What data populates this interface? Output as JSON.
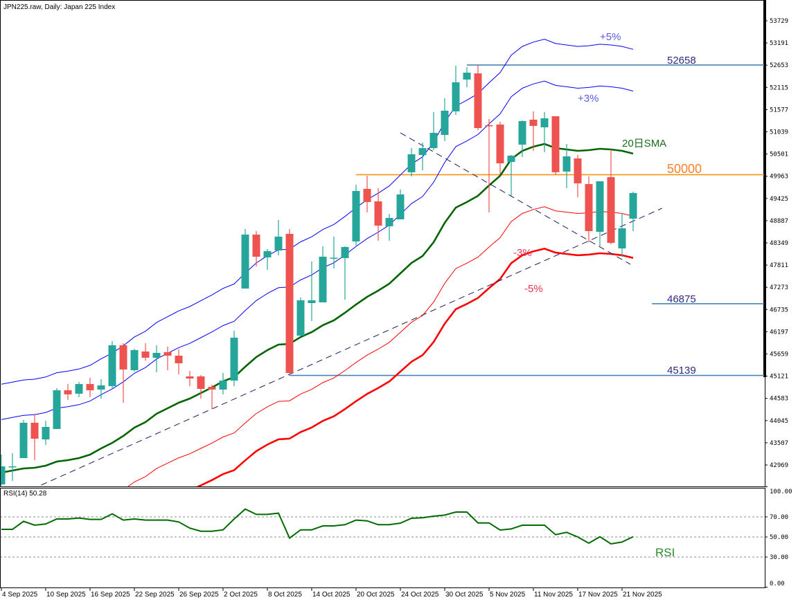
{
  "header": {
    "title": "JPN225.raw, Daily:  Japan 225 Index"
  },
  "rsi_panel": {
    "title": "RSI(14) 50.28",
    "label": "RSI"
  },
  "annotations": {
    "plus5": "+5%",
    "plus3": "+3%",
    "sma": "20日SMA",
    "minus3": "-3%",
    "minus5": "-5%"
  },
  "colors": {
    "bull": "#26a69a",
    "bear": "#ef5350",
    "sma": "#006400",
    "upper_env": "#0000ff",
    "lower_env": "#ff0000",
    "level_line": "#4682b4",
    "round_level": "#ff8c00",
    "trendline": "#1a1a60",
    "rsi": "#006a00"
  },
  "chart_data": [
    {
      "type": "candlestick",
      "title": "JPN225.raw, Daily:  Japan 225 Index",
      "ylim": [
        42700,
        54300
      ],
      "y_ticks": [
        "53729",
        "53191",
        "52653",
        "52115",
        "51577",
        "51039",
        "50501",
        "49963",
        "49425",
        "48887",
        "48349",
        "47811",
        "47273",
        "46735",
        "46197",
        "45659",
        "45121",
        "44583",
        "44045",
        "43507",
        "42969"
      ],
      "x_tick_labels": [
        {
          "index": 0,
          "label": "4 Sep 2025"
        },
        {
          "index": 4,
          "label": "10 Sep 2025"
        },
        {
          "index": 8,
          "label": "16 Sep 2025"
        },
        {
          "index": 12,
          "label": "22 Sep 2025"
        },
        {
          "index": 16,
          "label": "26 Sep 2025"
        },
        {
          "index": 20,
          "label": "2 Oct 2025"
        },
        {
          "index": 24,
          "label": "8 Oct 2025"
        },
        {
          "index": 28,
          "label": "14 Oct 2025"
        },
        {
          "index": 32,
          "label": "20 Oct 2025"
        },
        {
          "index": 36,
          "label": "24 Oct 2025"
        },
        {
          "index": 40,
          "label": "30 Oct 2025"
        },
        {
          "index": 44,
          "label": "5 Nov 2025"
        },
        {
          "index": 48,
          "label": "11 Nov 2025"
        },
        {
          "index": 52,
          "label": "17 Nov 2025"
        },
        {
          "index": 56,
          "label": "21 Nov 2025"
        }
      ],
      "ohlc_fields": [
        "open",
        "high",
        "low",
        "close"
      ],
      "ohlc": [
        [
          42500,
          43221,
          42466,
          42936
        ],
        [
          42920,
          43254,
          42584,
          42936
        ],
        [
          43137,
          44059,
          43137,
          43992
        ],
        [
          43992,
          44210,
          43087,
          43606
        ],
        [
          43589,
          44042,
          43455,
          43891
        ],
        [
          43841,
          44830,
          43841,
          44779
        ],
        [
          44779,
          44930,
          44545,
          44679
        ],
        [
          44696,
          44980,
          44612,
          44930
        ],
        [
          44930,
          45081,
          44612,
          44779
        ],
        [
          44796,
          45048,
          44578,
          44897
        ],
        [
          44880,
          45969,
          44813,
          45869
        ],
        [
          45869,
          45919,
          44478,
          45282
        ],
        [
          45265,
          45785,
          45232,
          45751
        ],
        [
          45718,
          45919,
          45500,
          45567
        ],
        [
          45567,
          45869,
          45215,
          45684
        ],
        [
          45701,
          45835,
          45265,
          45617
        ],
        [
          45617,
          45768,
          45165,
          45433
        ],
        [
          45115,
          45249,
          44880,
          45064
        ],
        [
          45115,
          45148,
          44578,
          44813
        ],
        [
          44863,
          44913,
          44327,
          44796
        ],
        [
          44796,
          45198,
          44679,
          45014
        ],
        [
          45014,
          46221,
          44880,
          46053
        ],
        [
          47243,
          48684,
          47243,
          48550
        ],
        [
          48550,
          48634,
          47779,
          48014
        ],
        [
          47997,
          48198,
          47696,
          48148
        ],
        [
          48165,
          48902,
          48048,
          48500
        ],
        [
          48567,
          48684,
          45139,
          45198
        ],
        [
          46103,
          47025,
          46103,
          46958
        ],
        [
          46891,
          47897,
          46455,
          46958
        ],
        [
          46908,
          48265,
          46908,
          48014
        ],
        [
          47981,
          48500,
          47729,
          47990
        ],
        [
          47981,
          48265,
          46975,
          48249
        ],
        [
          48383,
          49757,
          48282,
          49606
        ],
        [
          49657,
          49975,
          49087,
          49338
        ],
        [
          49355,
          49673,
          48400,
          48768
        ],
        [
          48751,
          49053,
          48400,
          48953
        ],
        [
          48919,
          49640,
          48919,
          49522
        ],
        [
          50059,
          50645,
          49958,
          50495
        ],
        [
          50478,
          50779,
          50109,
          50645
        ],
        [
          50645,
          51517,
          50595,
          51014
        ],
        [
          50964,
          51852,
          50813,
          51550
        ],
        [
          51534,
          52640,
          51450,
          52238
        ],
        [
          52305,
          52606,
          52120,
          52472
        ],
        [
          52455,
          52658,
          51081,
          51131
        ],
        [
          51198,
          51349,
          49087,
          51182
        ],
        [
          51215,
          51282,
          50008,
          50277
        ],
        [
          50310,
          50478,
          49489,
          50461
        ],
        [
          50729,
          51316,
          50427,
          51299
        ],
        [
          51333,
          51534,
          50578,
          51182
        ],
        [
          51148,
          51517,
          50545,
          51366
        ],
        [
          51416,
          51416,
          49992,
          50059
        ],
        [
          50076,
          50746,
          49673,
          50444
        ],
        [
          50394,
          50478,
          49455,
          49791
        ],
        [
          49774,
          49958,
          48366,
          48634
        ],
        [
          48617,
          49841,
          48249,
          49841
        ],
        [
          49941,
          50612,
          48316,
          48349
        ],
        [
          48215,
          49070,
          48014,
          48701
        ],
        [
          48936,
          49589,
          48634,
          49556
        ]
      ],
      "sma20": [
        42785,
        42835,
        42885,
        42902,
        42953,
        43053,
        43087,
        43137,
        43221,
        43372,
        43506,
        43673,
        43874,
        44008,
        44210,
        44344,
        44478,
        44578,
        44712,
        44846,
        44997,
        45098,
        45349,
        45584,
        45751,
        45886,
        45902,
        46070,
        46187,
        46355,
        46472,
        46656,
        46858,
        47042,
        47193,
        47360,
        47612,
        47863,
        48031,
        48366,
        48835,
        49204,
        49338,
        49489,
        49740,
        49975,
        50377,
        50578,
        50679,
        50746,
        50645,
        50612,
        50578,
        50595,
        50629,
        50612,
        50578,
        50511
      ],
      "envelopes_pct": [
        5,
        3,
        -3,
        -5
      ],
      "levels": [
        {
          "value": 52658,
          "label": "52658",
          "from_index": 42,
          "kind": "level"
        },
        {
          "value": 50000,
          "label": "50000",
          "from_index": 32,
          "kind": "round"
        },
        {
          "value": 46875,
          "label": "46875",
          "from_index": 58.7,
          "kind": "level"
        },
        {
          "value": 45139,
          "label": "45139",
          "from_index": 26,
          "kind": "level"
        }
      ],
      "trendlines": [
        {
          "from": [
            3.6,
            42483
          ],
          "to": [
            59.6,
            49187
          ]
        },
        {
          "from": [
            36,
            51014
          ],
          "to": [
            56.75,
            47830
          ]
        }
      ]
    },
    {
      "type": "line",
      "title": "RSI(14) 50.28",
      "ylim": [
        0,
        100
      ],
      "y_ticks": [
        "100.00",
        "70.00",
        "50.00",
        "30.00",
        "0.00"
      ],
      "levels": [
        70,
        50,
        30
      ],
      "values": [
        57.6,
        57.6,
        65.6,
        61.7,
        62.9,
        67.9,
        67.9,
        68.9,
        67.5,
        67.5,
        73.0,
        66.8,
        67.9,
        66.8,
        66.8,
        66.8,
        65.0,
        58.8,
        55.7,
        55.7,
        57.1,
        67.9,
        77.8,
        72.5,
        72.5,
        73.7,
        48.8,
        57.1,
        57.1,
        61.0,
        61.0,
        62.2,
        66.8,
        66.1,
        62.2,
        62.2,
        63.8,
        68.6,
        69.1,
        70.7,
        71.8,
        74.8,
        74.8,
        64.0,
        64.0,
        56.9,
        58.0,
        61.7,
        61.7,
        61.7,
        52.3,
        54.6,
        50.0,
        43.8,
        50.2,
        43.1,
        45.0,
        50.28
      ]
    }
  ]
}
